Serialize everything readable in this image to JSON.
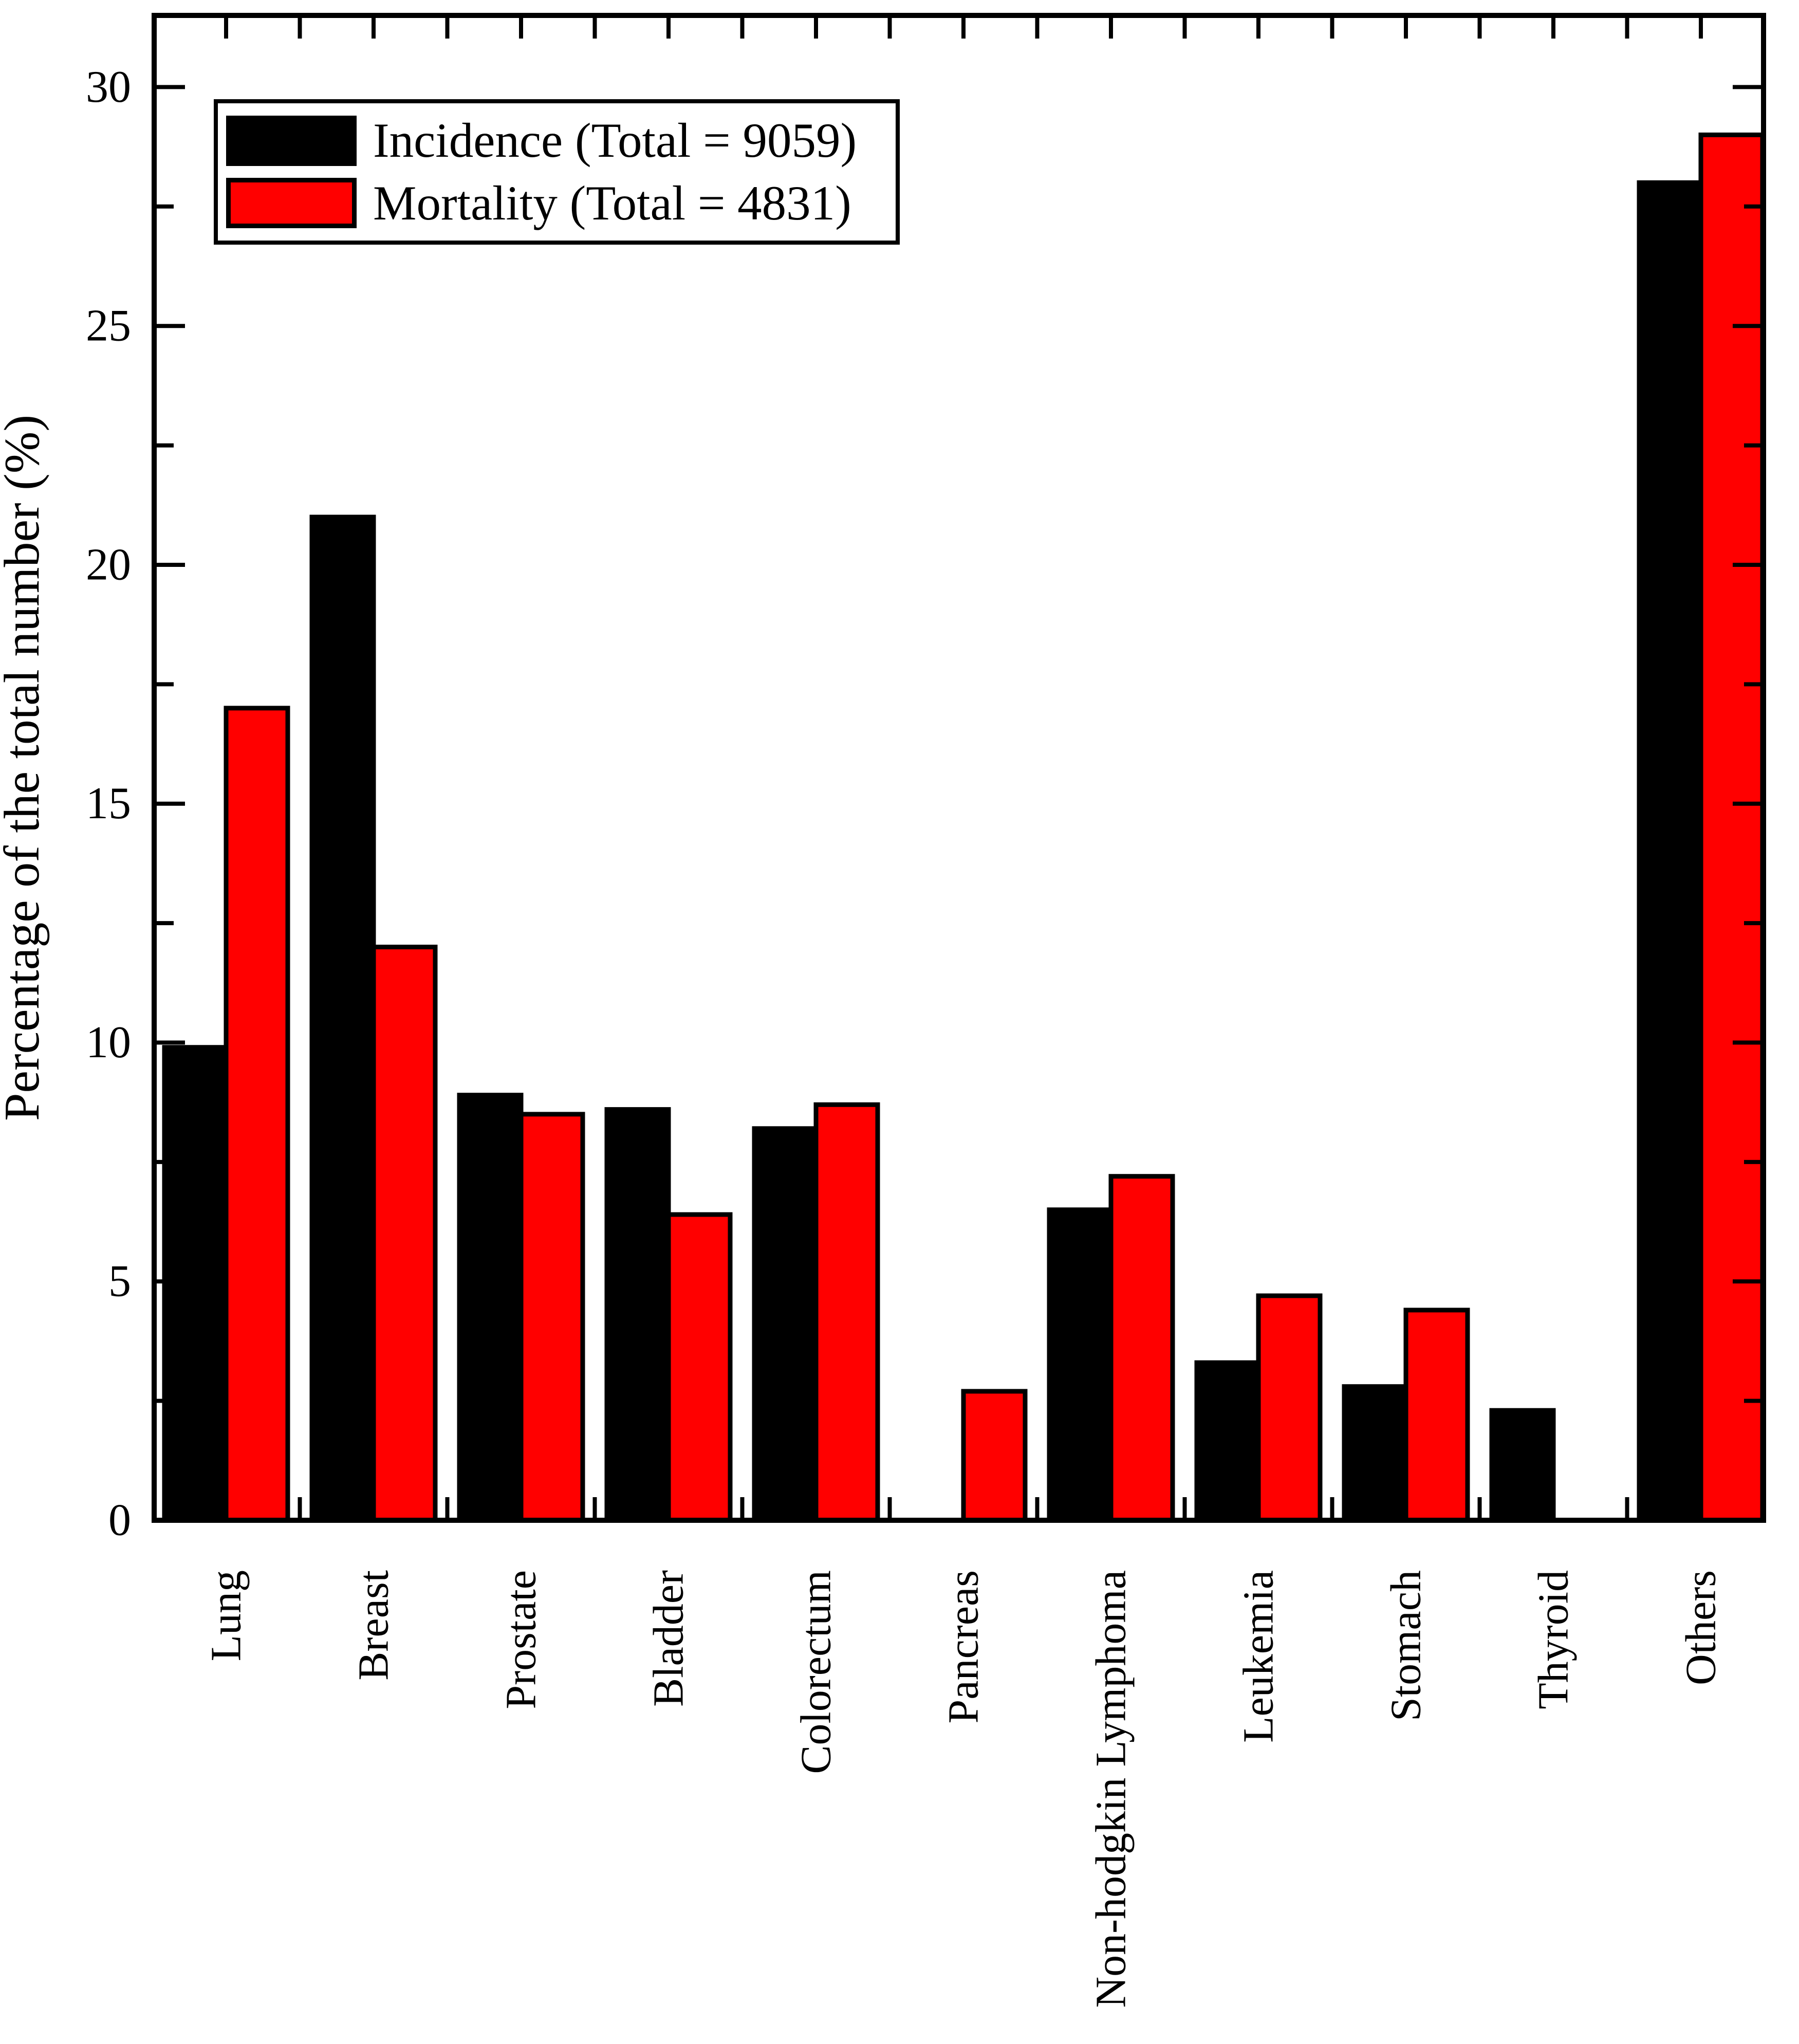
{
  "chart_data": {
    "type": "bar",
    "title": "",
    "xlabel": "",
    "ylabel": "Percentage of the total number (%)",
    "ylim": [
      0,
      31.5
    ],
    "yticks_major": [
      0,
      5,
      10,
      15,
      20,
      25,
      30
    ],
    "ytick_minor_step": 2.5,
    "grid": false,
    "legend_position": "top-left-inside",
    "categories": [
      "Lung",
      "Breast",
      "Prostate",
      "Bladder",
      "Colorectum",
      "Pancreas",
      "Non-hodgkin Lymphoma",
      "Leukemia",
      "Stomach",
      "Thyroid",
      "Others"
    ],
    "series": [
      {
        "name": "Incidence (Total = 9059)",
        "color": "#000000",
        "values": [
          9.9,
          21.0,
          8.9,
          8.6,
          8.2,
          0,
          6.5,
          3.3,
          2.8,
          2.3,
          28.0
        ]
      },
      {
        "name": "Mortality (Total = 4831)",
        "color": "#FF0000",
        "values": [
          17.0,
          12.0,
          8.5,
          6.4,
          8.7,
          2.7,
          7.2,
          4.7,
          4.4,
          0,
          29.0
        ]
      }
    ]
  },
  "legend": {
    "items": [
      {
        "label": "Incidence (Total = 9059)",
        "color": "#000000"
      },
      {
        "label": "Mortality (Total = 4831)",
        "color": "#FF0000"
      }
    ]
  },
  "colors": {
    "incidence": "#000000",
    "mortality": "#FF0000",
    "axis": "#000000",
    "background": "#FFFFFF"
  }
}
